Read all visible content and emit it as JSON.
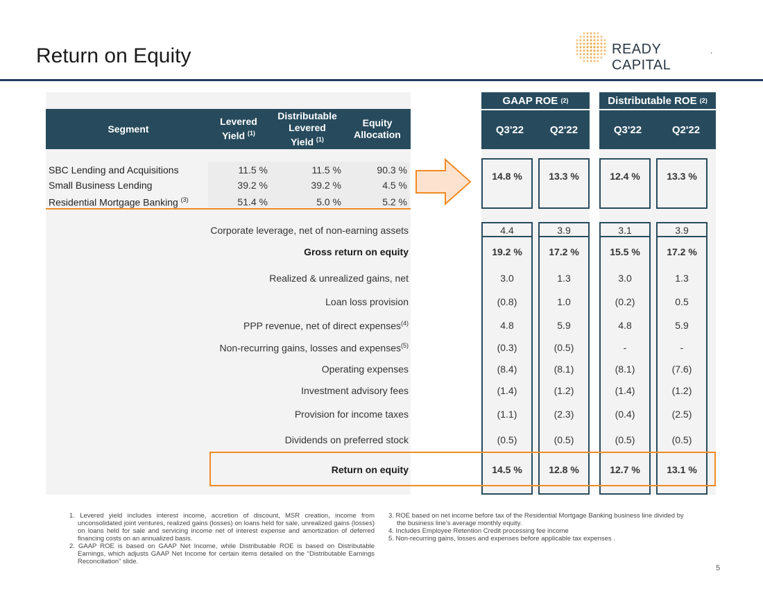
{
  "title": "Return on Equity",
  "logo": {
    "text": "READY CAPITAL",
    "suffix": "."
  },
  "page_number": "5",
  "segment_table": {
    "headers": {
      "segment": "Segment",
      "levered_yield": "Levered Yield",
      "levered_yield_sup": "(1)",
      "dist_levered_yield": "Distributable Levered Yield",
      "dist_levered_yield_sup": "(1)",
      "equity_allocation": "Equity Allocation"
    },
    "rows": [
      {
        "segment": "SBC Lending and Acquisitions",
        "sup": "",
        "levered_yield": "11.5 %",
        "dist_levered_yield": "11.5 %",
        "equity_allocation": "90.3 %"
      },
      {
        "segment": "Small Business Lending",
        "sup": "",
        "levered_yield": "39.2 %",
        "dist_levered_yield": "39.2 %",
        "equity_allocation": "4.5 %"
      },
      {
        "segment": "Residential Mortgage Banking",
        "sup": "(3)",
        "levered_yield": "51.4 %",
        "dist_levered_yield": "5.0 %",
        "equity_allocation": "5.2 %"
      }
    ]
  },
  "roe_groups": [
    {
      "label": "GAAP ROE",
      "sup": "(2)"
    },
    {
      "label": "Distributable ROE",
      "sup": "(2)"
    }
  ],
  "periods": [
    "Q3'22",
    "Q2'22",
    "Q3'22",
    "Q2'22"
  ],
  "segment_roe": [
    "14.8 %",
    "13.3 %",
    "12.4 %",
    "13.3 %"
  ],
  "bridge_rows": [
    {
      "label": "Corporate leverage, net of non-earning assets",
      "sup": "",
      "bold": false,
      "values": [
        "4.4",
        "3.9",
        "3.1",
        "3.9"
      ]
    },
    {
      "label": "Gross return on equity",
      "sup": "",
      "bold": true,
      "values": [
        "19.2 %",
        "17.2 %",
        "15.5 %",
        "17.2 %"
      ]
    },
    {
      "label": "Realized & unrealized gains, net",
      "sup": "",
      "bold": false,
      "values": [
        "3.0",
        "1.3",
        "3.0",
        "1.3"
      ]
    },
    {
      "label": "Loan loss provision",
      "sup": "",
      "bold": false,
      "values": [
        "(0.8)",
        "1.0",
        "(0.2)",
        "0.5"
      ]
    },
    {
      "label": "PPP revenue, net of direct expenses",
      "sup": "(4)",
      "bold": false,
      "values": [
        "4.8",
        "5.9",
        "4.8",
        "5.9"
      ]
    },
    {
      "label": "Non-recurring gains, losses and expenses",
      "sup": "(5)",
      "bold": false,
      "values": [
        "(0.3)",
        "(0.5)",
        "-",
        "-"
      ]
    },
    {
      "label": "Operating expenses",
      "sup": "",
      "bold": false,
      "values": [
        "(8.4)",
        "(8.1)",
        "(8.1)",
        "(7.6)"
      ]
    },
    {
      "label": "Investment advisory fees",
      "sup": "",
      "bold": false,
      "values": [
        "(1.4)",
        "(1.2)",
        "(1.4)",
        "(1.2)"
      ]
    },
    {
      "label": "Provision for income taxes",
      "sup": "",
      "bold": false,
      "values": [
        "(1.1)",
        "(2.3)",
        "(0.4)",
        "(2.5)"
      ]
    },
    {
      "label": "Dividends on preferred stock",
      "sup": "",
      "bold": false,
      "values": [
        "(0.5)",
        "(0.5)",
        "(0.5)",
        "(0.5)"
      ]
    }
  ],
  "total_row": {
    "label": "Return on equity",
    "values": [
      "14.5 %",
      "12.8 %",
      "12.7 %",
      "13.1 %"
    ]
  },
  "footnotes_left": [
    "1. Levered yield includes interest income, accretion of discount, MSR creation, income from unconsolidated joint ventures, realized gains (losses) on loans held for sale, unrealized gains (losses) on loans held for sale and servicing income net of interest expense and amortization of deferred financing costs on an annualized basis.",
    "2. GAAP ROE is based on GAAP Net Income, while Distributable ROE is based on Distributable Earnings, which adjusts GAAP Net Income for certain items detailed on the “Distributable Earnings Reconciliation” slide."
  ],
  "footnotes_right": [
    "3. ROE based on net income before tax of the Residential Mortgage Banking business line divided by the business line’s average monthly equity.",
    "4. Includes Employee Retention Credit processing fee income",
    "5. Non-recurring gains, losses and expenses before applicable tax expenses ."
  ],
  "colors": {
    "header_bg": "#274b5d",
    "accent_orange": "#f08a24",
    "rule": "#1f3a5f",
    "arrow_fill": "#fde3cf"
  }
}
